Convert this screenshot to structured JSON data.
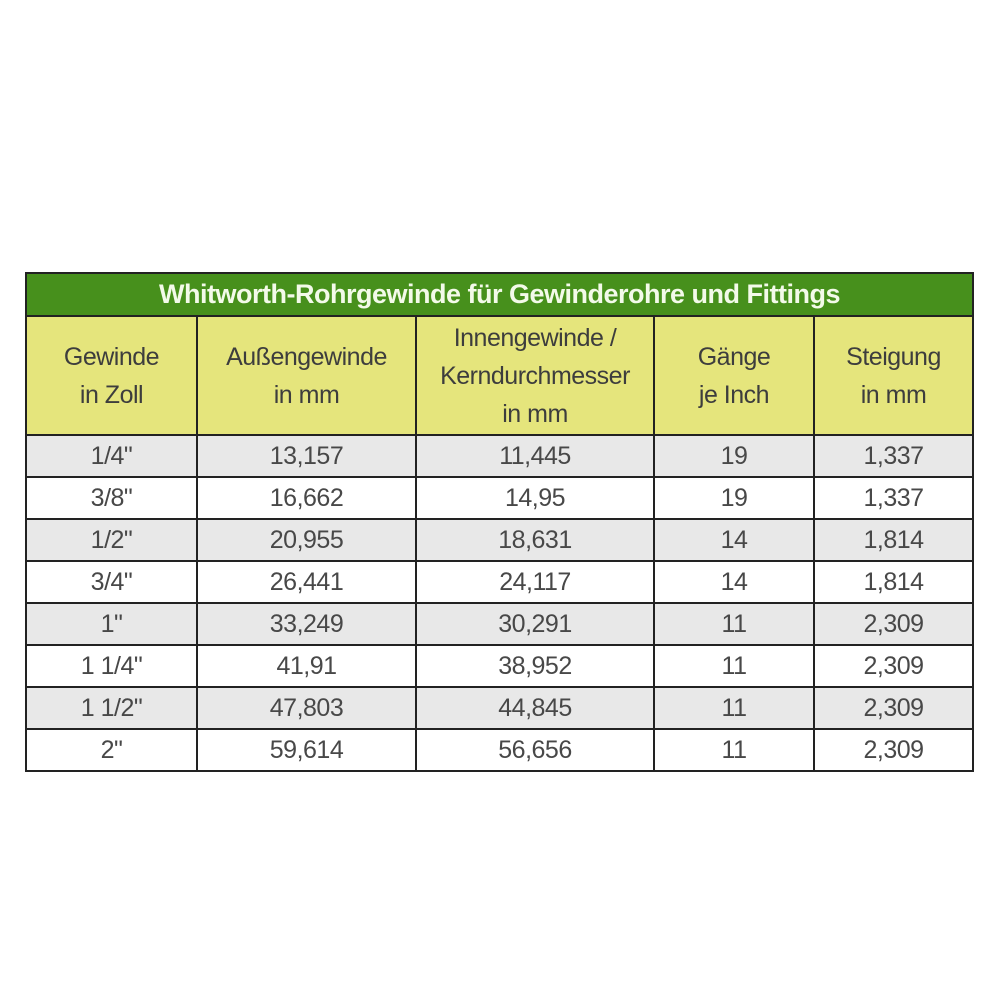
{
  "page": {
    "background": "#ffffff"
  },
  "colors": {
    "title_bg": "#47901c",
    "title_text": "#f3fae9",
    "header_bg": "#e5e57c",
    "row_alt_bg": "#e8e8e8",
    "row_bg": "#ffffff",
    "border": "#222222",
    "data_text": "#484848"
  },
  "table_display": {
    "headers": [
      "Gewinde\nin Zoll",
      "Außengewinde\nin mm",
      "Innengewinde /\nKerndurchmesser\nin mm",
      "Gänge\nje Inch",
      "Steigung\nin mm"
    ]
  },
  "chart_data": {
    "type": "table",
    "title": "Whitworth-Rohrgewinde für Gewinderohre und Fittings",
    "columns": [
      "Gewinde in Zoll",
      "Außengewinde in mm",
      "Innengewinde / Kerndurchmesser in mm",
      "Gänge je Inch",
      "Steigung in mm"
    ],
    "rows": [
      [
        "1/4\"",
        "13,157",
        "11,445",
        "19",
        "1,337"
      ],
      [
        "3/8\"",
        "16,662",
        "14,95",
        "19",
        "1,337"
      ],
      [
        "1/2\"",
        "20,955",
        "18,631",
        "14",
        "1,814"
      ],
      [
        "3/4\"",
        "26,441",
        "24,117",
        "14",
        "1,814"
      ],
      [
        "1\"",
        "33,249",
        "30,291",
        "11",
        "2,309"
      ],
      [
        "1 1/4\"",
        "41,91",
        "38,952",
        "11",
        "2,309"
      ],
      [
        "1 1/2\"",
        "47,803",
        "44,845",
        "11",
        "2,309"
      ],
      [
        "2\"",
        "59,614",
        "56,656",
        "11",
        "2,309"
      ]
    ]
  }
}
